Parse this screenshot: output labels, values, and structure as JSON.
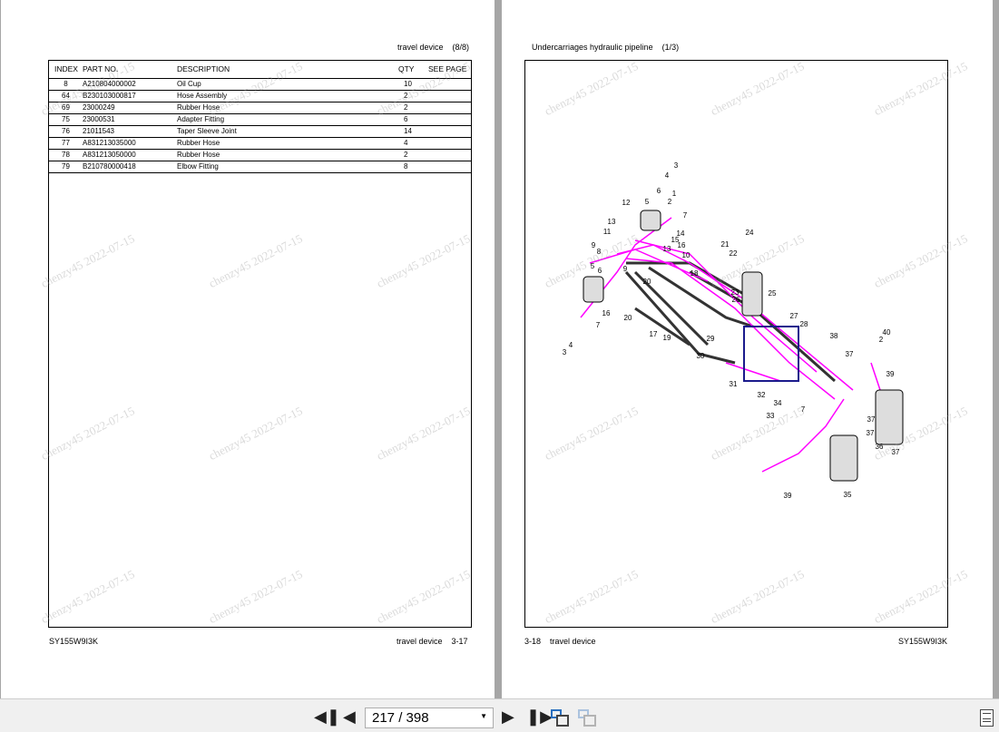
{
  "watermark": "chenzy45 2022-07-15",
  "left_page": {
    "header_title": "travel device",
    "header_count": "(8/8)",
    "columns": [
      "INDEX",
      "PART NO.",
      "DESCRIPTION",
      "QTY",
      "SEE PAGE"
    ],
    "rows": [
      {
        "index": "8",
        "part": "A210804000002",
        "desc": "Oil Cup",
        "qty": "10"
      },
      {
        "index": "64",
        "part": "B230103000817",
        "desc": "Hose Assembly",
        "qty": "2"
      },
      {
        "index": "69",
        "part": "23000249",
        "desc": "Rubber Hose",
        "qty": "2"
      },
      {
        "index": "75",
        "part": "23000531",
        "desc": "Adapter Fitting",
        "qty": "6"
      },
      {
        "index": "76",
        "part": "21011543",
        "desc": "Taper Sleeve Joint",
        "qty": "14"
      },
      {
        "index": "77",
        "part": "A831213035000",
        "desc": "Rubber Hose",
        "qty": "4"
      },
      {
        "index": "78",
        "part": "A831213050000",
        "desc": "Rubber Hose",
        "qty": "2"
      },
      {
        "index": "79",
        "part": "B210780000418",
        "desc": "Elbow Fitting",
        "qty": "8"
      }
    ],
    "footer_model": "SY155W9I3K",
    "footer_section": "travel device",
    "footer_page": "3-17"
  },
  "right_page": {
    "header_title": "Undercarriages hydraulic pipeline",
    "header_count": "(1/3)",
    "callouts": [
      "3",
      "4",
      "6",
      "1",
      "12",
      "5",
      "2",
      "7",
      "13",
      "14",
      "11",
      "15",
      "9",
      "16",
      "8",
      "13",
      "10",
      "21",
      "24",
      "22",
      "5",
      "6",
      "9",
      "18",
      "20",
      "23",
      "26",
      "25",
      "16",
      "27",
      "20",
      "7",
      "28",
      "17",
      "19",
      "29",
      "40",
      "2",
      "4",
      "38",
      "3",
      "30",
      "37",
      "39",
      "31",
      "32",
      "34",
      "33",
      "7",
      "37",
      "37",
      "36",
      "37",
      "39",
      "35"
    ],
    "footer_page": "3-18",
    "footer_section": "travel device",
    "footer_model": "SY155W9I3K"
  },
  "toolbar": {
    "page_value": "217 / 398",
    "colors": {
      "hose": "#ff00ff",
      "line": "#333333",
      "fitting": "#1a1a8c"
    }
  }
}
